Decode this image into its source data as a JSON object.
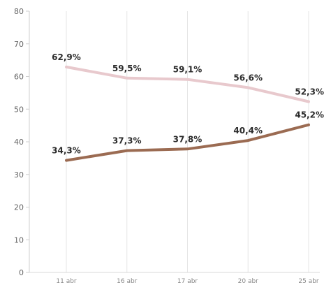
{
  "chart_data": {
    "type": "line",
    "title": "",
    "xlabel": "",
    "ylabel": "",
    "ylim": [
      0,
      80
    ],
    "yticks": [
      0,
      10,
      20,
      30,
      40,
      50,
      60,
      70,
      80
    ],
    "grid": "vertical lines at categories",
    "legend": "none",
    "categories": [
      "11 abr",
      "16 abr",
      "17 abr",
      "20 abr",
      "25 abr"
    ],
    "series": [
      {
        "values": [
          62.9,
          59.5,
          59.1,
          56.6,
          52.3
        ],
        "labels": [
          "62,9%",
          "59,5%",
          "59,1%",
          "56,6%",
          "52,3%"
        ],
        "color": "#e8c9cd"
      },
      {
        "values": [
          34.3,
          37.3,
          37.8,
          40.4,
          45.2
        ],
        "labels": [
          "34,3%",
          "37,3%",
          "37,8%",
          "40,4%",
          "45,2%"
        ],
        "color": "#9b6b52"
      }
    ]
  }
}
